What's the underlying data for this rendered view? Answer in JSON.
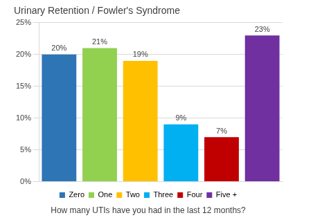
{
  "chart_data": {
    "type": "bar",
    "title": "Urinary Retention / Fowler's Syndrome",
    "x_label": "How many UTIs have you had in the last 12 months?",
    "categories": [
      "Zero",
      "One",
      "Two",
      "Three",
      "Four",
      "Five +"
    ],
    "values": [
      20,
      21,
      19,
      9,
      7,
      23
    ],
    "value_labels": [
      "20%",
      "21%",
      "19%",
      "9%",
      "7%",
      "23%"
    ],
    "colors": [
      "#2e75b6",
      "#92d050",
      "#ffc000",
      "#00b0f0",
      "#c00000",
      "#7030a0"
    ],
    "ylim": [
      0,
      25
    ],
    "yticks": [
      {
        "value": 0,
        "label": "0%"
      },
      {
        "value": 5,
        "label": "5%"
      },
      {
        "value": 10,
        "label": "10%"
      },
      {
        "value": 15,
        "label": "15%"
      },
      {
        "value": 20,
        "label": "20%"
      },
      {
        "value": 25,
        "label": "25%"
      }
    ],
    "grid": true,
    "legend": "bottom",
    "data_labels": true,
    "tick_labels": "y"
  }
}
